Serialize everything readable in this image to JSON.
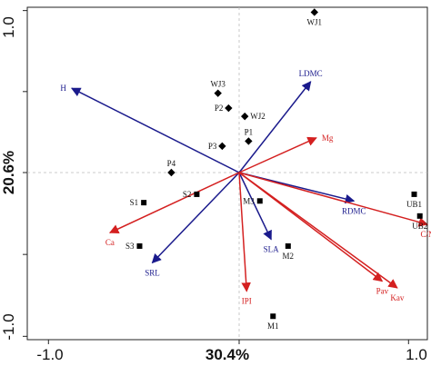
{
  "chart_data": {
    "type": "scatter",
    "subtype": "rda-biplot",
    "title": "",
    "xlabel": "30.4%",
    "ylabel": "20.6%",
    "xlim": [
      -1.0,
      1.0
    ],
    "ylim": [
      -1.0,
      1.0
    ],
    "x_ticks": [
      "-1.0",
      "1.0"
    ],
    "y_ticks": [
      "1.0",
      "-1.0"
    ],
    "grid": false,
    "zero_lines": true,
    "colors": {
      "blue_vectors": "#1a1a8c",
      "red_vectors": "#d42020",
      "points": "#000000",
      "zero_line": "#bbbbbb"
    },
    "sites": [
      {
        "label": "WJ1",
        "x": 0.4,
        "y": 0.97,
        "marker": "diamond",
        "label_pos": "below"
      },
      {
        "label": "WJ3",
        "x": -0.1,
        "y": 0.48,
        "marker": "diamond",
        "label_pos": "above"
      },
      {
        "label": "P2",
        "x": -0.05,
        "y": 0.39,
        "marker": "diamond",
        "label_pos": "left"
      },
      {
        "label": "WJ2",
        "x": 0.03,
        "y": 0.34,
        "marker": "diamond",
        "label_pos": "right"
      },
      {
        "label": "P1",
        "x": 0.05,
        "y": 0.19,
        "marker": "diamond",
        "label_pos": "above"
      },
      {
        "label": "P3",
        "x": -0.08,
        "y": 0.16,
        "marker": "diamond",
        "label_pos": "left"
      },
      {
        "label": "P4",
        "x": -0.32,
        "y": 0.0,
        "marker": "diamond",
        "label_pos": "above"
      },
      {
        "label": "S2",
        "x": -0.2,
        "y": -0.13,
        "marker": "square",
        "label_pos": "left"
      },
      {
        "label": "S1",
        "x": -0.45,
        "y": -0.18,
        "marker": "square",
        "label_pos": "left"
      },
      {
        "label": "M3",
        "x": 0.11,
        "y": -0.17,
        "marker": "square",
        "label_pos": "left"
      },
      {
        "label": "UB1",
        "x": 0.93,
        "y": -0.13,
        "marker": "square",
        "label_pos": "below"
      },
      {
        "label": "UB2",
        "x": 0.96,
        "y": -0.26,
        "marker": "square",
        "label_pos": "below"
      },
      {
        "label": "S3",
        "x": -0.47,
        "y": -0.44,
        "marker": "square",
        "label_pos": "left"
      },
      {
        "label": "M2",
        "x": 0.26,
        "y": -0.44,
        "marker": "square",
        "label_pos": "below"
      },
      {
        "label": "M1",
        "x": 0.18,
        "y": -0.86,
        "marker": "square",
        "label_pos": "below"
      }
    ],
    "vectors": [
      {
        "label": "H",
        "x": -0.79,
        "y": 0.51,
        "color": "blue",
        "label_pos": "left"
      },
      {
        "label": "LDMC",
        "x": 0.38,
        "y": 0.55,
        "color": "blue",
        "label_pos": "above"
      },
      {
        "label": "RDMC",
        "x": 0.61,
        "y": -0.17,
        "color": "blue",
        "label_pos": "below"
      },
      {
        "label": "SLA",
        "x": 0.17,
        "y": -0.4,
        "color": "blue",
        "label_pos": "below"
      },
      {
        "label": "SRL",
        "x": -0.41,
        "y": -0.54,
        "color": "blue",
        "label_pos": "below"
      },
      {
        "label": "Mg",
        "x": 0.41,
        "y": 0.21,
        "color": "red",
        "label_pos": "right"
      },
      {
        "label": "C/N",
        "x": 1.0,
        "y": -0.31,
        "color": "red",
        "label_pos": "below"
      },
      {
        "label": "Ca",
        "x": -0.61,
        "y": -0.36,
        "color": "red",
        "label_pos": "below"
      },
      {
        "label": "IPI",
        "x": 0.04,
        "y": -0.71,
        "color": "red",
        "label_pos": "below"
      },
      {
        "label": "Pav",
        "x": 0.76,
        "y": -0.65,
        "color": "red",
        "label_pos": "below"
      },
      {
        "label": "Kav",
        "x": 0.84,
        "y": -0.69,
        "color": "red",
        "label_pos": "below"
      }
    ]
  }
}
